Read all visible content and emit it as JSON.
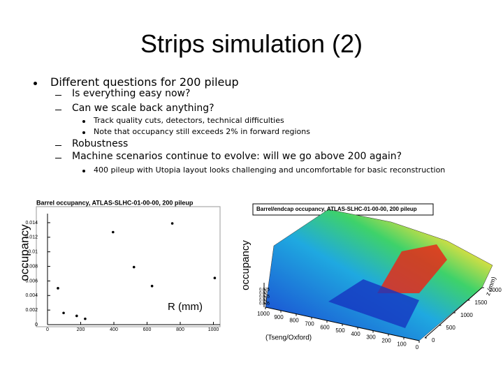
{
  "slide": {
    "title": "Strips simulation (2)",
    "bullets": [
      {
        "text": "Different questions for 200 pileup",
        "items": [
          {
            "text": "Is everything easy now?"
          },
          {
            "text": "Can we scale back anything?",
            "items": [
              {
                "text": "Track quality cuts, detectors, technical difficulties"
              },
              {
                "text": "Note that occupancy still exceeds 2% in forward regions"
              }
            ]
          },
          {
            "text": "Robustness"
          },
          {
            "text": "Machine scenarios continue to evolve:  will we go above 200 again?",
            "items": [
              {
                "text": "400 pileup with Utopia layout looks challenging and uncomfortable for basic reconstruction"
              }
            ]
          }
        ]
      }
    ]
  },
  "chart_data": [
    {
      "type": "scatter",
      "title": "Barrel occupancy, ATLAS-SLHC-01-00-00, 200 pileup",
      "x_label": "R (mm)",
      "y_label": "occupancy",
      "x": [
        63,
        97,
        176,
        227,
        395,
        521,
        630,
        752,
        1008
      ],
      "values": [
        0.005,
        0.0016,
        0.0012,
        0.0008,
        0.0127,
        0.0079,
        0.0053,
        0.0139,
        0.0064
      ],
      "color": "#000000",
      "xlim": [
        0,
        1040
      ],
      "ylim": [
        0,
        0.0162
      ],
      "xticks": [
        0,
        200,
        400,
        600,
        800,
        1000
      ],
      "yticks": [
        0,
        0.002,
        0.004,
        0.006,
        0.008,
        0.01,
        0.012,
        0.014
      ]
    },
    {
      "type": "surface",
      "title": "Barrel/endcap occupancy, ATLAS-SLHC-01-00-00, 200 pileup",
      "y_label": "occupancy",
      "x_label": "z (mm)",
      "note": "(Tseng/Oxford)",
      "rticks": [
        0,
        100,
        200,
        300,
        400,
        500,
        600,
        700,
        800,
        900,
        1000
      ],
      "zticks": [
        0,
        500,
        1000,
        1500,
        2000
      ],
      "yticks": [
        0.005,
        0.01,
        0.015,
        0.02,
        0.025
      ]
    }
  ]
}
